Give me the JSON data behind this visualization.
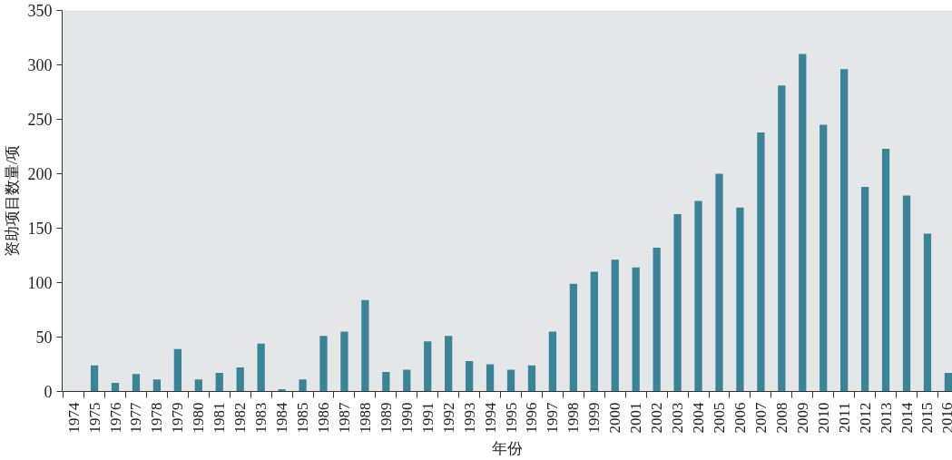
{
  "chart_data": {
    "type": "bar",
    "xlabel": "年份",
    "ylabel": "资助项目数量/项",
    "categories": [
      "1974",
      "1975",
      "1976",
      "1977",
      "1978",
      "1979",
      "1980",
      "1981",
      "1982",
      "1983",
      "1984",
      "1985",
      "1986",
      "1987",
      "1988",
      "1989",
      "1990",
      "1991",
      "1992",
      "1993",
      "1994",
      "1995",
      "1996",
      "1997",
      "1998",
      "1999",
      "2000",
      "2001",
      "2002",
      "2003",
      "2004",
      "2005",
      "2006",
      "2007",
      "2008",
      "2009",
      "2010",
      "2011",
      "2012",
      "2013",
      "2014",
      "2015",
      "2016"
    ],
    "values": [
      0,
      24,
      8,
      16,
      11,
      39,
      11,
      17,
      22,
      44,
      2,
      11,
      51,
      55,
      84,
      18,
      20,
      46,
      51,
      28,
      25,
      20,
      24,
      55,
      99,
      110,
      121,
      114,
      132,
      163,
      175,
      200,
      169,
      238,
      281,
      310,
      245,
      296,
      188,
      223,
      180,
      145,
      17
    ],
    "color": "#3a8497",
    "ylim": [
      0,
      350
    ],
    "yticks": [
      0,
      50,
      100,
      150,
      200,
      250,
      300,
      350
    ]
  }
}
